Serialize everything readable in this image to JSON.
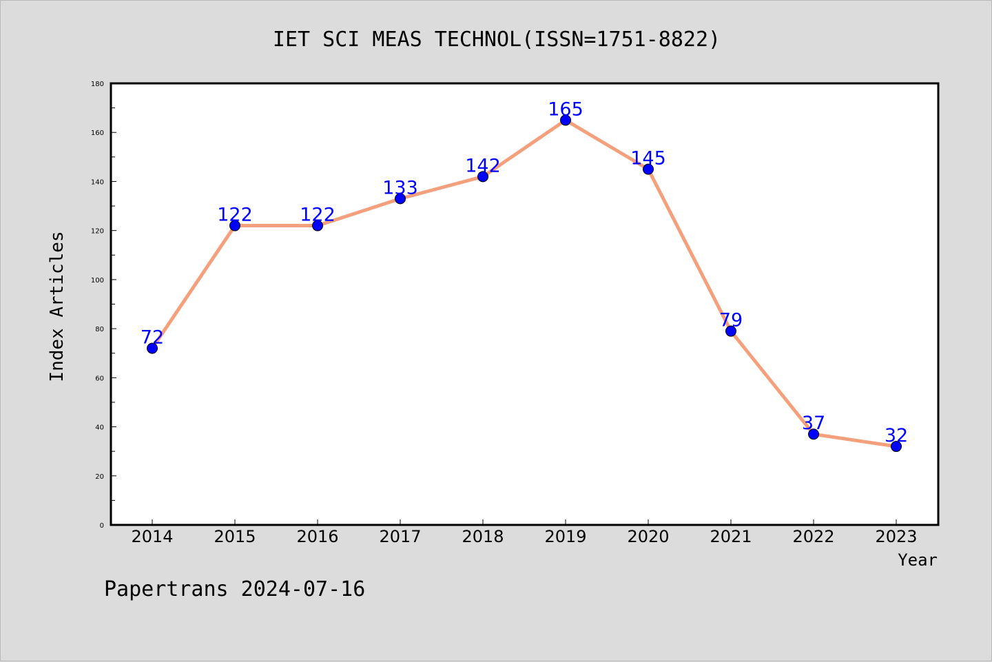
{
  "chart_data": {
    "type": "line",
    "title": "IET SCI MEAS TECHNOL(ISSN=1751-8822)",
    "xlabel": "Year",
    "ylabel": "Index Articles",
    "categories": [
      "2014",
      "2015",
      "2016",
      "2017",
      "2018",
      "2019",
      "2020",
      "2021",
      "2022",
      "2023"
    ],
    "values": [
      72,
      122,
      122,
      133,
      142,
      165,
      145,
      79,
      37,
      32
    ],
    "ylim": [
      0,
      180
    ],
    "yticks": [
      0,
      20,
      40,
      60,
      80,
      100,
      120,
      140,
      160,
      180
    ],
    "grid": false,
    "data_labels": true,
    "colors": {
      "line": "#f4a07c",
      "marker": "#0000ff",
      "label": "#0000ff",
      "background": "#dcdcdc",
      "plot_area": "#ffffff"
    }
  },
  "footer": {
    "credit": "Papertrans 2024-07-16"
  }
}
